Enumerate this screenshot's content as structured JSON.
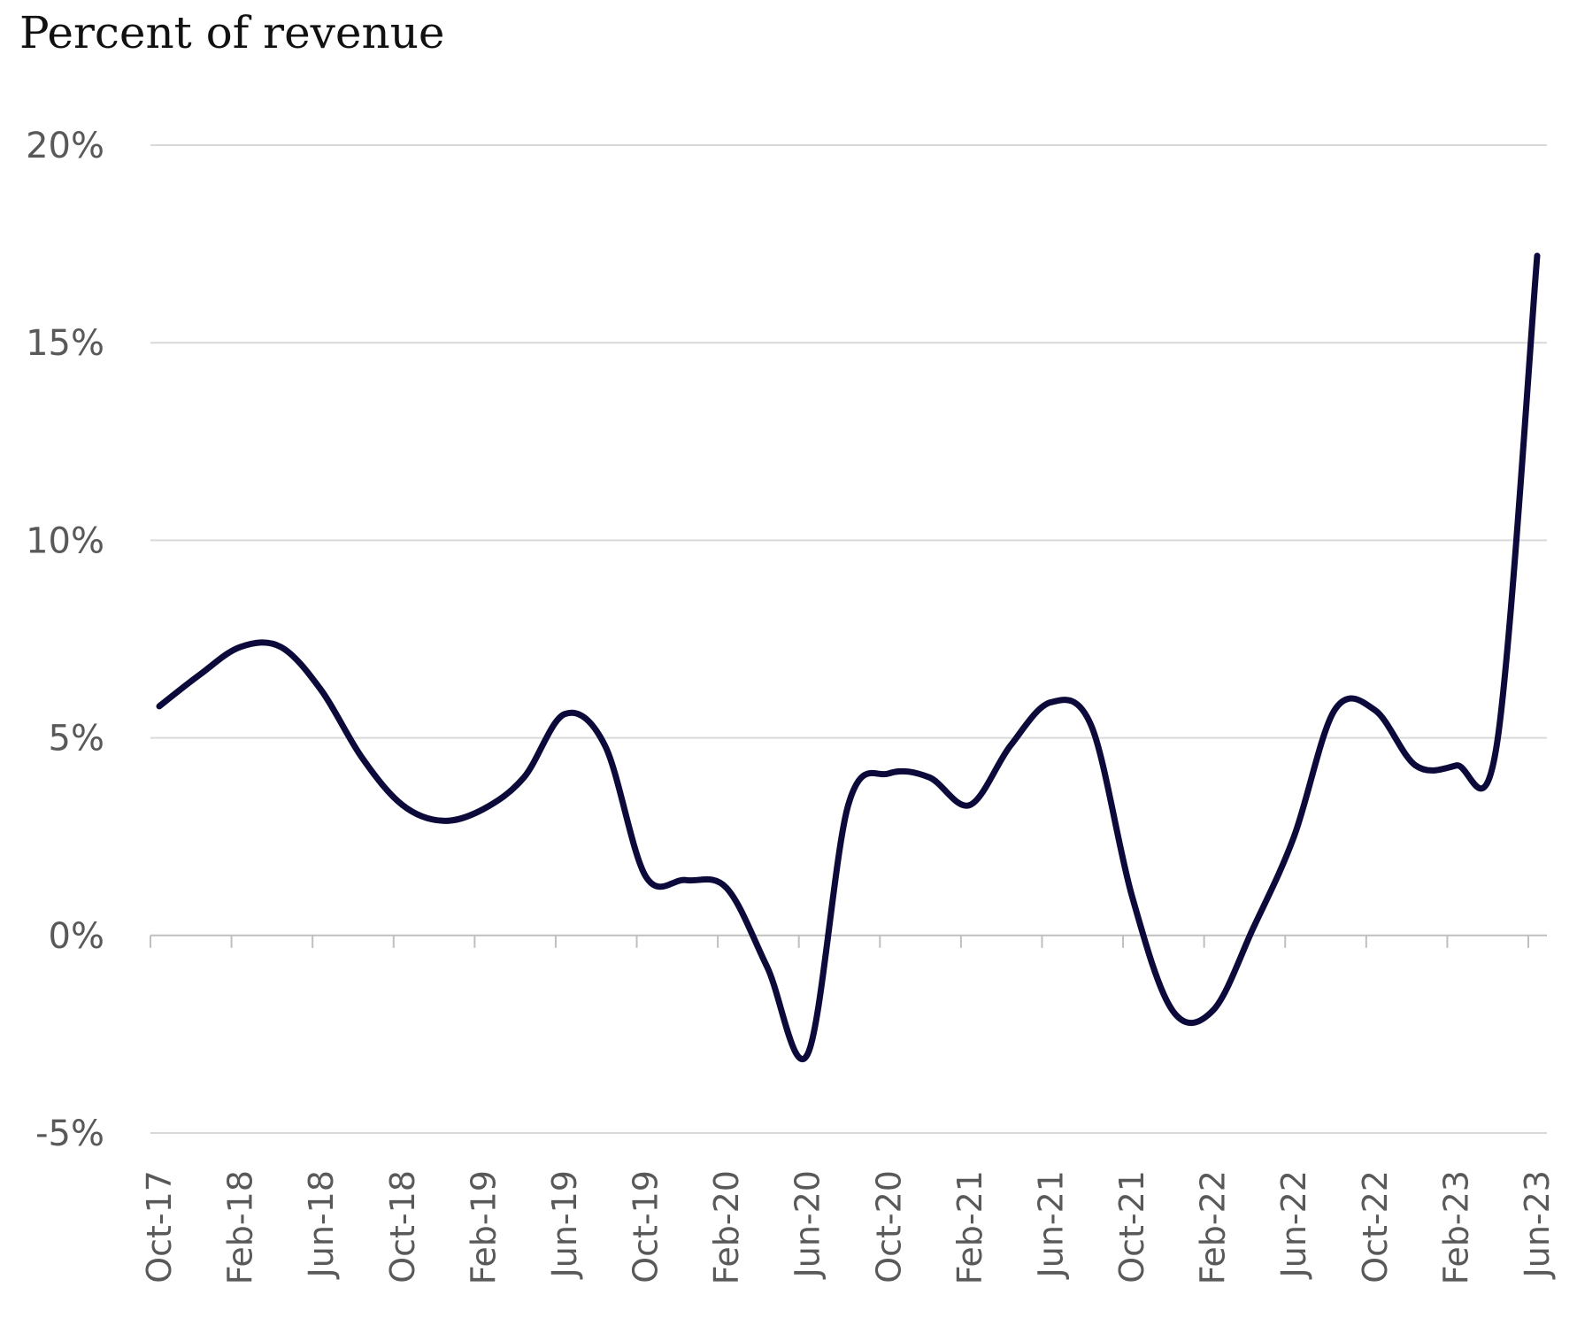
{
  "chart_data": {
    "type": "line",
    "title": "Percent of revenue",
    "xlabel": "",
    "ylabel": "",
    "ylim": [
      -5,
      20
    ],
    "yticks": [
      -5,
      0,
      5,
      10,
      15,
      20
    ],
    "ytick_labels": [
      "-5%",
      "0%",
      "5%",
      "10%",
      "15%",
      "20%"
    ],
    "xtick_labels": [
      "Oct-17",
      "Feb-18",
      "Jun-18",
      "Oct-18",
      "Feb-19",
      "Jun-19",
      "Oct-19",
      "Feb-20",
      "Jun-20",
      "Oct-20",
      "Feb-21",
      "Jun-21",
      "Oct-21",
      "Feb-22",
      "Jun-22",
      "Oct-22",
      "Feb-23",
      "Jun-23"
    ],
    "grid": true,
    "legend": "none",
    "colors": {
      "line": "#0b0a3a",
      "grid": "#d9d9d9",
      "axis": "#bfbfbf",
      "tick_text": "#595959"
    },
    "series": [
      {
        "x": [
          "Oct-17",
          "Dec-17",
          "Feb-18",
          "Apr-18",
          "Jun-18",
          "Aug-18",
          "Oct-18",
          "Dec-18",
          "Feb-19",
          "Apr-19",
          "Jun-19",
          "Aug-19",
          "Oct-19",
          "Dec-19",
          "Feb-20",
          "Apr-20",
          "Jun-20",
          "Aug-20",
          "Oct-20",
          "Dec-20",
          "Feb-21",
          "Apr-21",
          "Jun-21",
          "Aug-21",
          "Oct-21",
          "Dec-21",
          "Feb-22",
          "Apr-22",
          "Jun-22",
          "Aug-22",
          "Oct-22",
          "Dec-22",
          "Feb-23",
          "Apr-23",
          "Jun-23"
        ],
        "values": [
          5.8,
          6.6,
          7.3,
          7.3,
          6.2,
          4.5,
          3.3,
          2.9,
          3.2,
          4.0,
          5.6,
          4.8,
          1.5,
          1.4,
          1.2,
          -0.8,
          -3.0,
          3.3,
          4.1,
          4.0,
          3.3,
          4.8,
          5.9,
          5.3,
          1.0,
          -1.9,
          -1.9,
          0.2,
          2.5,
          5.7,
          5.7,
          4.3,
          4.3,
          4.8,
          17.2
        ]
      }
    ]
  }
}
